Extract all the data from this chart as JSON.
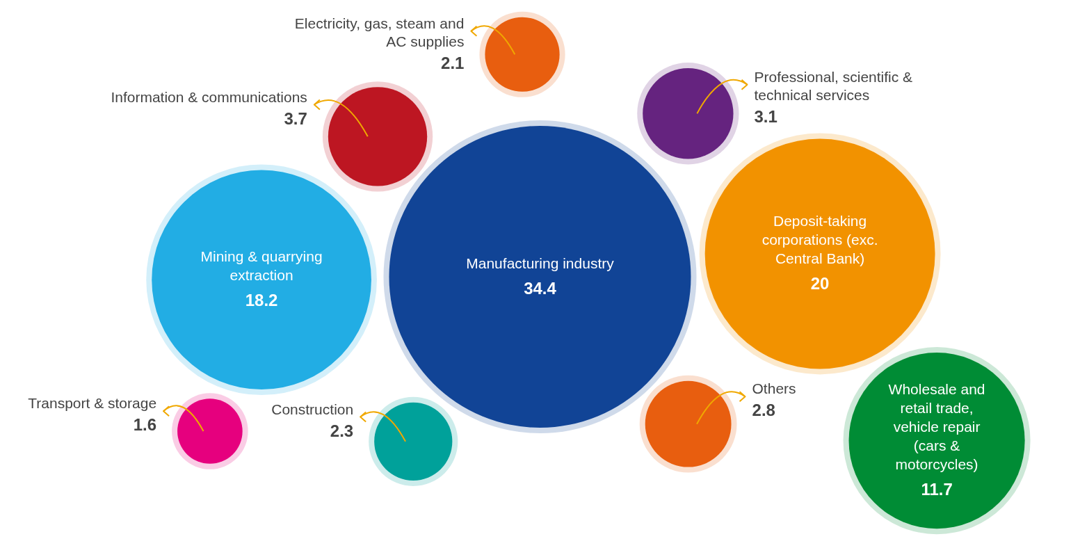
{
  "chart_data": {
    "type": "other",
    "categories": [
      "Manufacturing industry",
      "Deposit-taking corporations (exc. Central Bank)",
      "Mining & quarrying extraction",
      "Wholesale and retail trade, vehicle repair (cars & motorcycles)",
      "Information & communications",
      "Professional, scientific & technical services",
      "Others",
      "Construction",
      "Electricity, gas, steam and AC supplies",
      "Transport & storage"
    ],
    "values": [
      34.4,
      20,
      18.2,
      11.7,
      3.7,
      3.1,
      2.8,
      2.3,
      2.1,
      1.6
    ],
    "colors": [
      "#114496",
      "#f29200",
      "#22ade4",
      "#008c35",
      "#bd1622",
      "#65237f",
      "#e85e0f",
      "#00a19a",
      "#e85e0f",
      "#e6007e"
    ],
    "data_labels": true
  }
}
